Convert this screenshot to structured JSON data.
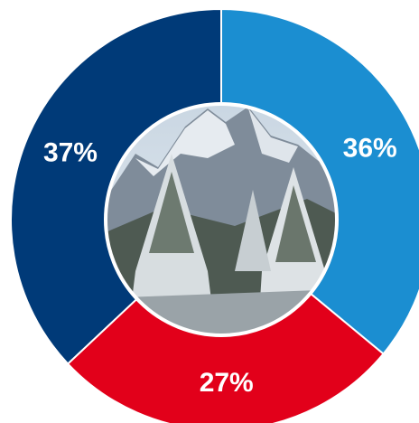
{
  "chart_data": {
    "type": "donut",
    "values": [
      36,
      27,
      37
    ],
    "value_labels": [
      "36%",
      "27%",
      "37%"
    ],
    "colors": [
      "#1b8ed1",
      "#e2001a",
      "#003a78"
    ]
  }
}
